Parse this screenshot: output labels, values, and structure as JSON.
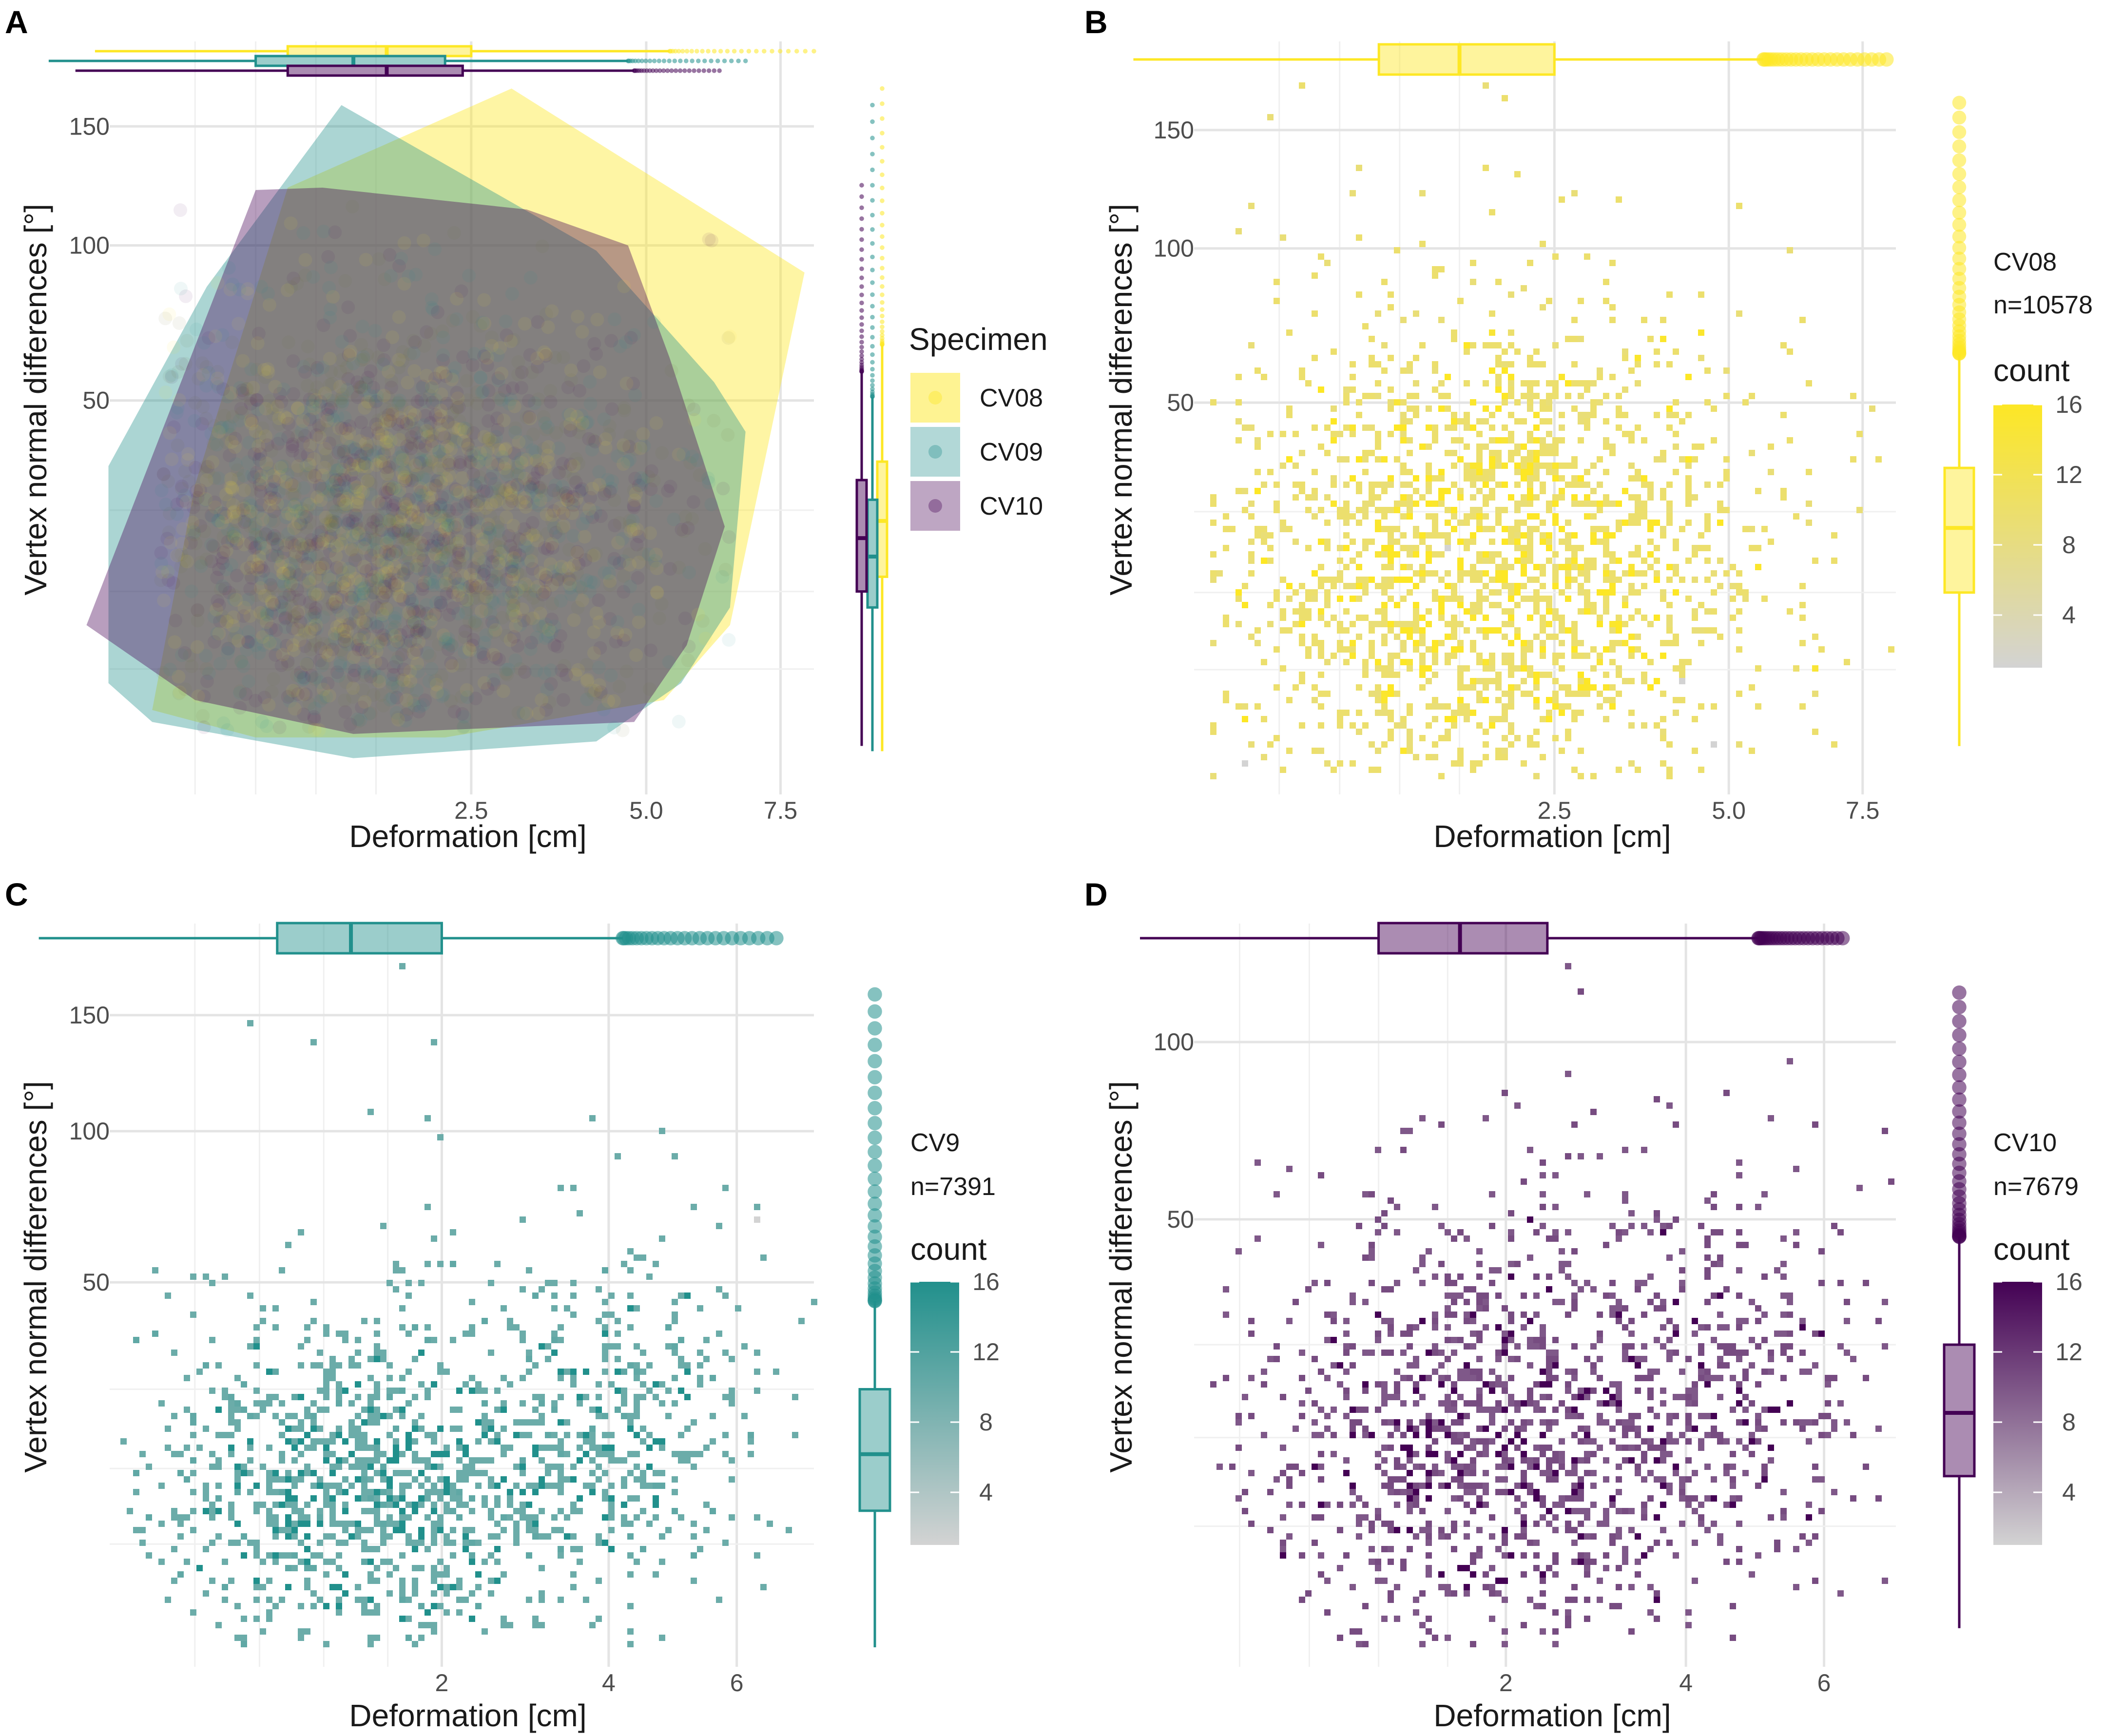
{
  "figure": {
    "panels": [
      {
        "letter": "A"
      },
      {
        "letter": "B"
      },
      {
        "letter": "C"
      },
      {
        "letter": "D"
      }
    ],
    "colors": {
      "CV08": "#FDE725",
      "CV09": "#21908C",
      "CV10": "#440154",
      "grey": "#D3D3D3"
    }
  },
  "chart_data": [
    {
      "panel": "A",
      "type": "scatter",
      "xlabel": "Deformation [cm]",
      "ylabel": "Vertex normal differences [°]",
      "x_scale": "sqrt",
      "y_scale": "sqrt",
      "xticks": [
        "2.5",
        "5.0",
        "7.5"
      ],
      "xtick_values": [
        2.5,
        5.0,
        7.5
      ],
      "yticks": [
        "50",
        "100",
        "150"
      ],
      "ytick_values": [
        50,
        100,
        150
      ],
      "xlim": [
        0,
        8.2
      ],
      "ylim": [
        0,
        170
      ],
      "legend": {
        "title": "Specimen",
        "entries": [
          "CV08",
          "CV09",
          "CV10"
        ]
      },
      "series": [
        {
          "name": "CV08",
          "hull": [
            [
              0.15,
              1.5
            ],
            [
              0.6,
              0.5
            ],
            [
              2.2,
              0.5
            ],
            [
              5.3,
              2
            ],
            [
              6.5,
              8
            ],
            [
              8.0,
              90
            ],
            [
              3.0,
              168
            ],
            [
              0.8,
              123
            ],
            [
              0.3,
              30
            ]
          ]
        },
        {
          "name": "CV09",
          "hull": [
            [
              0.05,
              3
            ],
            [
              0.15,
              1
            ],
            [
              1.3,
              0.1
            ],
            [
              4.2,
              0.4
            ],
            [
              5.6,
              3
            ],
            [
              6.5,
              10
            ],
            [
              6.8,
              42
            ],
            [
              6.2,
              55
            ],
            [
              4.2,
              98
            ],
            [
              1.2,
              160
            ],
            [
              0.35,
              85
            ],
            [
              0.05,
              34
            ]
          ]
        },
        {
          "name": "CV10",
          "hull": [
            [
              0.02,
              8
            ],
            [
              0.3,
              2
            ],
            [
              1.3,
              0.6
            ],
            [
              4.8,
              1
            ],
            [
              5.7,
              6
            ],
            [
              6.4,
              22
            ],
            [
              5.4,
              62
            ],
            [
              4.7,
              100
            ],
            [
              3.2,
              114
            ],
            [
              1.05,
              123
            ],
            [
              0.6,
              122
            ]
          ]
        }
      ],
      "marginal_x": [
        {
          "name": "CV08",
          "q1": 0.8,
          "median": 1.6,
          "q3": 2.5,
          "whisker_low": 0.03,
          "whisker_high": 5.4,
          "outliers_to": 8.2
        },
        {
          "name": "CV09",
          "q1": 0.6,
          "median": 1.3,
          "q3": 2.2,
          "whisker_low": 0.0,
          "whisker_high": 4.7,
          "outliers_to": 6.8
        },
        {
          "name": "CV10",
          "q1": 0.8,
          "median": 1.6,
          "q3": 2.4,
          "whisker_low": 0.01,
          "whisker_high": 4.8,
          "outliers_to": 6.3
        }
      ],
      "marginal_y": [
        {
          "name": "CV08",
          "q1": 14,
          "median": 23,
          "q3": 35,
          "whisker_low": 0.2,
          "whisker_high": 66,
          "outliers_to": 168
        },
        {
          "name": "CV09",
          "q1": 10,
          "median": 17,
          "q3": 27,
          "whisker_low": 0.2,
          "whisker_high": 51,
          "outliers_to": 160
        },
        {
          "name": "CV10",
          "q1": 12,
          "median": 20,
          "q3": 31,
          "whisker_low": 0.3,
          "whisker_high": 58,
          "outliers_to": 124
        }
      ]
    },
    {
      "panel": "B",
      "type": "heatmap",
      "specimen": "CV08",
      "n_label": "n=10578",
      "xlabel": "Deformation [cm]",
      "ylabel": "Vertex normal differences [°]",
      "x_scale": "sqrt",
      "y_scale": "sqrt",
      "xticks": [
        "2.5",
        "5.0",
        "7.5"
      ],
      "xtick_values": [
        2.5,
        5.0,
        7.5
      ],
      "yticks": [
        "50",
        "100",
        "150"
      ],
      "ytick_values": [
        50,
        100,
        150
      ],
      "xlim": [
        0,
        8.6
      ],
      "ylim": [
        0,
        175
      ],
      "legend": {
        "title": "count",
        "ticks": [
          "4",
          "8",
          "12",
          "16"
        ],
        "tick_values": [
          4,
          8,
          12,
          16
        ],
        "range": [
          1,
          16
        ]
      },
      "density_center": {
        "x": 1.5,
        "y": 22
      },
      "marginal_x": {
        "q1": 0.85,
        "median": 1.5,
        "q3": 2.5,
        "whisker_low": 0.0,
        "whisker_high": 5.6,
        "outliers_to": 8.0
      },
      "marginal_y": {
        "q1": 12,
        "median": 22,
        "q3": 34,
        "whisker_low": 0.3,
        "whisker_high": 64,
        "outliers_to": 163
      }
    },
    {
      "panel": "C",
      "type": "heatmap",
      "specimen": "CV9",
      "n_label": "n=7391",
      "xlabel": "Deformation [cm]",
      "ylabel": "Vertex normal differences [°]",
      "x_scale": "sqrt",
      "y_scale": "sqrt",
      "xticks": [
        "2",
        "4",
        "6"
      ],
      "xtick_values": [
        2,
        4,
        6
      ],
      "yticks": [
        "50",
        "100",
        "150"
      ],
      "ytick_values": [
        50,
        100,
        150
      ],
      "xlim": [
        0,
        7
      ],
      "ylim": [
        0,
        175
      ],
      "legend": {
        "title": "count",
        "ticks": [
          "4",
          "8",
          "12",
          "16"
        ],
        "tick_values": [
          4,
          8,
          12,
          16
        ],
        "range": [
          1,
          16
        ]
      },
      "density_center": {
        "x": 1.2,
        "y": 14
      },
      "marginal_x": {
        "q1": 0.7,
        "median": 1.2,
        "q3": 2.0,
        "whisker_low": 0.0,
        "whisker_high": 4.2,
        "outliers_to": 6.7
      },
      "marginal_y": {
        "q1": 7,
        "median": 14,
        "q3": 25,
        "whisker_low": 0.0,
        "whisker_high": 45,
        "outliers_to": 160
      }
    },
    {
      "panel": "D",
      "type": "heatmap",
      "specimen": "CV10",
      "n_label": "n=7679",
      "xlabel": "Deformation [cm]",
      "ylabel": "Vertex normal differences [°]",
      "x_scale": "sqrt",
      "y_scale": "sqrt",
      "xticks": [
        "2",
        "4",
        "6"
      ],
      "xtick_values": [
        2,
        4,
        6
      ],
      "yticks": [
        "50",
        "100"
      ],
      "ytick_values": [
        50,
        100
      ],
      "xlim": [
        0,
        6.8
      ],
      "ylim": [
        0,
        125
      ],
      "legend": {
        "title": "count",
        "ticks": [
          "4",
          "8",
          "12",
          "16"
        ],
        "tick_values": [
          4,
          8,
          12,
          16
        ],
        "range": [
          1,
          16
        ]
      },
      "density_center": {
        "x": 1.6,
        "y": 17
      },
      "marginal_x": {
        "q1": 1.0,
        "median": 1.6,
        "q3": 2.4,
        "whisker_low": 0.05,
        "whisker_high": 5.0,
        "outliers_to": 6.3
      },
      "marginal_y": {
        "q1": 8,
        "median": 15,
        "q3": 25,
        "whisker_low": 0.1,
        "whisker_high": 46,
        "outliers_to": 117
      }
    }
  ]
}
